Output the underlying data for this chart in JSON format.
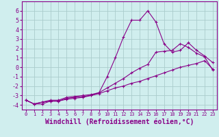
{
  "background_color": "#d0eeee",
  "grid_color": "#aacccc",
  "line_color": "#880088",
  "marker_color": "#880088",
  "xlabel": "Windchill (Refroidissement éolien,°C)",
  "xlabel_fontsize": 7,
  "ylim": [
    -4.5,
    7.0
  ],
  "xlim": [
    -0.5,
    23.5
  ],
  "yticks": [
    -4,
    -3,
    -2,
    -1,
    0,
    1,
    2,
    3,
    4,
    5,
    6
  ],
  "xticks": [
    0,
    1,
    2,
    3,
    4,
    5,
    6,
    7,
    8,
    9,
    10,
    11,
    12,
    13,
    14,
    15,
    16,
    17,
    18,
    19,
    20,
    21,
    22,
    23
  ],
  "series": [
    {
      "x": [
        0,
        1,
        2,
        3,
        4,
        5,
        6,
        7,
        8,
        9,
        10,
        11,
        12,
        13,
        14,
        15,
        16,
        17,
        18,
        19,
        20,
        21,
        22,
        23
      ],
      "y": [
        -3.5,
        -3.9,
        -3.9,
        -3.6,
        -3.6,
        -3.4,
        -3.3,
        -3.2,
        -3.0,
        -2.7,
        -1.0,
        1.0,
        3.2,
        5.0,
        5.0,
        6.0,
        4.8,
        2.5,
        1.6,
        1.8,
        2.6,
        1.8,
        1.2,
        0.5
      ]
    },
    {
      "x": [
        0,
        1,
        2,
        3,
        4,
        5,
        6,
        7,
        8,
        9,
        10,
        11,
        12,
        13,
        14,
        15,
        16,
        17,
        18,
        19,
        20,
        21,
        22,
        23
      ],
      "y": [
        -3.5,
        -3.9,
        -3.7,
        -3.5,
        -3.5,
        -3.2,
        -3.1,
        -3.0,
        -2.9,
        -2.7,
        -2.2,
        -1.7,
        -1.2,
        -0.6,
        -0.1,
        0.3,
        1.6,
        1.7,
        1.8,
        2.5,
        2.1,
        1.5,
        1.1,
        -0.3
      ]
    },
    {
      "x": [
        0,
        1,
        2,
        3,
        4,
        5,
        6,
        7,
        8,
        9,
        10,
        11,
        12,
        13,
        14,
        15,
        16,
        17,
        18,
        19,
        20,
        21,
        22,
        23
      ],
      "y": [
        -3.5,
        -3.9,
        -3.7,
        -3.6,
        -3.6,
        -3.3,
        -3.2,
        -3.1,
        -3.0,
        -2.8,
        -2.5,
        -2.2,
        -2.0,
        -1.7,
        -1.5,
        -1.2,
        -0.9,
        -0.6,
        -0.3,
        0.0,
        0.2,
        0.4,
        0.7,
        -0.2
      ]
    }
  ]
}
